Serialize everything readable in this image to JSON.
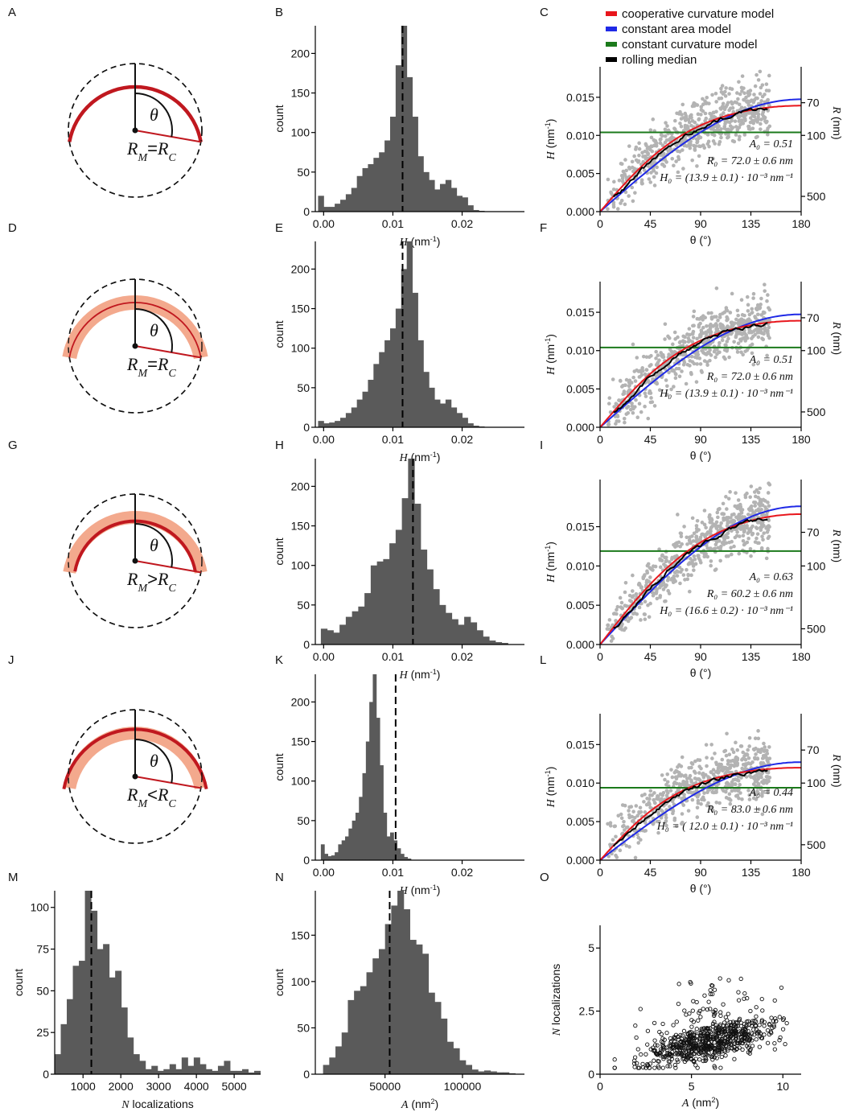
{
  "chart_data": [
    {
      "panel": "A",
      "type": "diagram",
      "variant": "equal",
      "theta_label": "θ",
      "relation": {
        "left": "R",
        "left_sub": "M",
        "op": "=",
        "right": "R",
        "right_sub": "C"
      },
      "colors": {
        "model_arc": "#c0181f",
        "coat": "#f3a98d",
        "ref": "#111111"
      }
    },
    {
      "panel": "B",
      "type": "bar",
      "xlabel": {
        "italic": "H",
        "unit": " (nm",
        "sup": "-1",
        "close": ")"
      },
      "ylabel": "count",
      "xlim": [
        -0.0012,
        0.029
      ],
      "ylim": [
        0,
        235
      ],
      "xticks": [
        0,
        0.01,
        0.02
      ],
      "xticklabels": [
        "0.00",
        "0.01",
        "0.02"
      ],
      "yticks": [
        0,
        50,
        100,
        150,
        200
      ],
      "yticklabels": [
        "0",
        "50",
        "100",
        "150",
        "200"
      ],
      "bin_start": -0.0008,
      "bin_width": 0.0008,
      "values": [
        20,
        6,
        6,
        10,
        15,
        22,
        30,
        45,
        55,
        60,
        68,
        75,
        90,
        120,
        185,
        235,
        170,
        120,
        70,
        50,
        40,
        28,
        35,
        40,
        30,
        20,
        18,
        8,
        2,
        1
      ],
      "median": 0.0114
    },
    {
      "panel": "C",
      "type": "scatter",
      "xlabel": {
        "text": "θ (°)"
      },
      "ylabel": {
        "italic": "H",
        "unit": " (nm",
        "sup": "-1",
        "close": ")"
      },
      "y2label": {
        "italic": "R",
        "unit": " (nm)"
      },
      "xlim": [
        0,
        180
      ],
      "ylim": [
        0,
        0.019
      ],
      "xticks": [
        0,
        45,
        90,
        135,
        180
      ],
      "xticklabels": [
        "0",
        "45",
        "90",
        "135",
        "180"
      ],
      "yticks": [
        0,
        0.005,
        0.01,
        0.015
      ],
      "yticklabels": [
        "0.000",
        "0.005",
        "0.010",
        "0.015"
      ],
      "y2ticks": [
        70,
        100,
        500
      ],
      "y2ticklabels": [
        "70",
        "100",
        "500"
      ],
      "H0": 0.0139,
      "A0": 0.51,
      "constant_H": 0.0104,
      "scatter_points": 620,
      "seed": 7,
      "legend": [
        "cooperative curvature model",
        "constant area model",
        "constant curvature model",
        "rolling median"
      ],
      "legend_colors": [
        "#e8161c",
        "#1f29e6",
        "#1b7a1b",
        "#000000"
      ],
      "annotation": [
        "A₀ = 0.51",
        "R₀ = 72.0 ± 0.6 nm",
        "H₀ = (13.9 ± 0.1) · 10⁻³ nm⁻¹"
      ]
    },
    {
      "panel": "D",
      "type": "diagram",
      "variant": "thick",
      "theta_label": "θ",
      "relation": {
        "left": "R",
        "left_sub": "M",
        "op": "=",
        "right": "R",
        "right_sub": "C"
      }
    },
    {
      "panel": "E",
      "type": "bar",
      "xlabel": {
        "italic": "H",
        "unit": " (nm",
        "sup": "-1",
        "close": ")"
      },
      "ylabel": "count",
      "xlim": [
        -0.0012,
        0.029
      ],
      "ylim": [
        0,
        235
      ],
      "xticks": [
        0,
        0.01,
        0.02
      ],
      "xticklabels": [
        "0.00",
        "0.01",
        "0.02"
      ],
      "yticks": [
        0,
        50,
        100,
        150,
        200
      ],
      "yticklabels": [
        "0",
        "50",
        "100",
        "150",
        "200"
      ],
      "bin_start": -0.0008,
      "bin_width": 0.0008,
      "values": [
        8,
        5,
        6,
        8,
        12,
        18,
        25,
        35,
        45,
        60,
        80,
        95,
        110,
        125,
        150,
        200,
        235,
        170,
        110,
        70,
        50,
        35,
        30,
        35,
        25,
        18,
        12,
        5,
        2,
        1
      ],
      "median": 0.0114
    },
    {
      "panel": "F",
      "type": "scatter",
      "xlabel": {
        "text": "θ (°)"
      },
      "ylabel": {
        "italic": "H",
        "unit": " (nm",
        "sup": "-1",
        "close": ")"
      },
      "y2label": {
        "italic": "R",
        "unit": " (nm)"
      },
      "xlim": [
        0,
        180
      ],
      "ylim": [
        0,
        0.019
      ],
      "xticks": [
        0,
        45,
        90,
        135,
        180
      ],
      "xticklabels": [
        "0",
        "45",
        "90",
        "135",
        "180"
      ],
      "yticks": [
        0,
        0.005,
        0.01,
        0.015
      ],
      "yticklabels": [
        "0.000",
        "0.005",
        "0.010",
        "0.015"
      ],
      "y2ticks": [
        70,
        100,
        500
      ],
      "y2ticklabels": [
        "70",
        "100",
        "500"
      ],
      "H0": 0.0139,
      "A0": 0.51,
      "constant_H": 0.0104,
      "scatter_points": 620,
      "seed": 13,
      "annotation": [
        "A₀ = 0.51",
        "R₀ = 72.0 ± 0.6 nm",
        "H₀ = (13.9 ± 0.1) · 10⁻³ nm⁻¹"
      ]
    },
    {
      "panel": "G",
      "type": "diagram",
      "variant": "greater",
      "theta_label": "θ",
      "relation": {
        "left": "R",
        "left_sub": "M",
        "op": ">",
        "right": "R",
        "right_sub": "C"
      }
    },
    {
      "panel": "H",
      "type": "bar",
      "xlabel": {
        "italic": "H",
        "unit": " (nm",
        "sup": "-1",
        "close": ")"
      },
      "ylabel": "count",
      "xlim": [
        -0.0012,
        0.029
      ],
      "ylim": [
        0,
        235
      ],
      "xticks": [
        0,
        0.01,
        0.02
      ],
      "xticklabels": [
        "0.00",
        "0.01",
        "0.02"
      ],
      "yticks": [
        0,
        50,
        100,
        150,
        200
      ],
      "yticklabels": [
        "0",
        "50",
        "100",
        "150",
        "200"
      ],
      "bin_start": -0.0004,
      "bin_width": 0.0009,
      "values": [
        20,
        18,
        15,
        25,
        35,
        42,
        48,
        65,
        100,
        105,
        108,
        128,
        145,
        185,
        235,
        178,
        120,
        95,
        70,
        50,
        40,
        32,
        25,
        35,
        28,
        18,
        10,
        5,
        3,
        2
      ],
      "median": 0.0129
    },
    {
      "panel": "I",
      "type": "scatter",
      "xlabel": {
        "text": "θ (°)"
      },
      "ylabel": {
        "italic": "H",
        "unit": " (nm",
        "sup": "-1",
        "close": ")"
      },
      "y2label": {
        "italic": "R",
        "unit": " (nm)"
      },
      "xlim": [
        0,
        180
      ],
      "ylim": [
        0,
        0.021
      ],
      "xticks": [
        0,
        45,
        90,
        135,
        180
      ],
      "xticklabels": [
        "0",
        "45",
        "90",
        "135",
        "180"
      ],
      "yticks": [
        0,
        0.005,
        0.01,
        0.015
      ],
      "yticklabels": [
        "0.000",
        "0.005",
        "0.010",
        "0.015"
      ],
      "y2ticks": [
        70,
        100,
        500
      ],
      "y2ticklabels": [
        "70",
        "100",
        "500"
      ],
      "H0": 0.0166,
      "A0": 0.63,
      "constant_H": 0.0119,
      "scatter_points": 620,
      "seed": 23,
      "annotation": [
        "A₀ = 0.63",
        "R₀ = 60.2 ± 0.6 nm",
        "H₀ = (16.6 ± 0.2) · 10⁻³ nm⁻¹"
      ]
    },
    {
      "panel": "J",
      "type": "diagram",
      "variant": "less",
      "theta_label": "θ",
      "relation": {
        "left": "R",
        "left_sub": "M",
        "op": "<",
        "right": "R",
        "right_sub": "C"
      }
    },
    {
      "panel": "K",
      "type": "bar",
      "xlabel": {
        "italic": "H",
        "unit": " (nm",
        "sup": "-1",
        "close": ")"
      },
      "ylabel": "count",
      "xlim": [
        -0.0012,
        0.029
      ],
      "ylim": [
        0,
        235
      ],
      "xticks": [
        0,
        0.01,
        0.02
      ],
      "xticklabels": [
        "0.00",
        "0.01",
        "0.02"
      ],
      "yticks": [
        0,
        50,
        100,
        150,
        200
      ],
      "yticklabels": [
        "0",
        "50",
        "100",
        "150",
        "200"
      ],
      "bin_start": -0.0004,
      "bin_width": 0.0005,
      "values": [
        20,
        8,
        5,
        6,
        10,
        20,
        25,
        30,
        40,
        50,
        60,
        80,
        110,
        150,
        200,
        235,
        180,
        120,
        60,
        30,
        35,
        25,
        15,
        8,
        4,
        2
      ],
      "median": 0.0104
    },
    {
      "panel": "L",
      "type": "scatter",
      "xlabel": {
        "text": "θ (°)"
      },
      "ylabel": {
        "italic": "H",
        "unit": " (nm",
        "sup": "-1",
        "close": ")"
      },
      "y2label": {
        "italic": "R",
        "unit": " (nm)"
      },
      "xlim": [
        0,
        180
      ],
      "ylim": [
        0,
        0.019
      ],
      "xticks": [
        0,
        45,
        90,
        135,
        180
      ],
      "xticklabels": [
        "0",
        "45",
        "90",
        "135",
        "180"
      ],
      "yticks": [
        0,
        0.005,
        0.01,
        0.015
      ],
      "yticklabels": [
        "0.000",
        "0.005",
        "0.010",
        "0.015"
      ],
      "y2ticks": [
        70,
        100,
        500
      ],
      "y2ticklabels": [
        "70",
        "100",
        "500"
      ],
      "H0": 0.012,
      "A0": 0.44,
      "constant_H": 0.0094,
      "scatter_points": 620,
      "seed": 41,
      "annotation": [
        "A₀ = 0.44",
        "R₀ =  83.0 ± 0.6 nm",
        "H₀ = ( 12.0 ± 0.1) · 10⁻³ nm⁻¹"
      ]
    },
    {
      "panel": "M",
      "type": "bar",
      "xlabel": {
        "italic": "N",
        "unit": " localizations"
      },
      "ylabel": "count",
      "xlim": [
        250,
        5700
      ],
      "ylim": [
        0,
        110
      ],
      "xticks": [
        1000,
        2000,
        3000,
        4000,
        5000
      ],
      "xticklabels": [
        "1000",
        "2000",
        "3000",
        "4000",
        "5000"
      ],
      "yticks": [
        0,
        25,
        50,
        75,
        100
      ],
      "yticklabels": [
        "0",
        "25",
        "50",
        "75",
        "100"
      ],
      "bin_start": 250,
      "bin_width": 160,
      "values": [
        12,
        30,
        45,
        65,
        68,
        110,
        98,
        75,
        78,
        58,
        62,
        40,
        22,
        12,
        8,
        3,
        5,
        2,
        3,
        6,
        3,
        10,
        5,
        10,
        6,
        3,
        2,
        5,
        8,
        2,
        2,
        3,
        1,
        2
      ],
      "median": 1220
    },
    {
      "panel": "N",
      "type": "bar",
      "xlabel": {
        "italic": "A",
        "unit": " (nm",
        "sup": "2",
        "close": ")"
      },
      "ylabel": "count",
      "xlim": [
        5000,
        140000
      ],
      "ylim": [
        0,
        198
      ],
      "xticks": [
        50000,
        100000
      ],
      "xticklabels": [
        "50000",
        "100000"
      ],
      "yticks": [
        0,
        50,
        100,
        150
      ],
      "yticklabels": [
        "0",
        "50",
        "100",
        "150"
      ],
      "bin_start": 10000,
      "bin_width": 4000,
      "values": [
        10,
        18,
        30,
        45,
        80,
        90,
        95,
        110,
        125,
        135,
        162,
        182,
        198,
        178,
        145,
        140,
        130,
        88,
        78,
        60,
        35,
        28,
        15,
        10,
        5,
        3,
        4,
        3,
        2,
        2,
        1
      ],
      "median": 53000
    },
    {
      "panel": "O",
      "type": "scatter",
      "xlabel": {
        "italic": "A",
        "unit": " (nm",
        "sup": "2",
        "close": ")"
      },
      "ylabel": {
        "italic": "N",
        "unit": " localizations"
      },
      "xlim": [
        0,
        11
      ],
      "ylim": [
        0,
        5.9
      ],
      "xticks": [
        0,
        5,
        10
      ],
      "xticklabels": [
        "0",
        "5",
        "10"
      ],
      "yticks": [
        0,
        2.5,
        5
      ],
      "yticklabels": [
        "0",
        "2.5",
        "5"
      ],
      "scatter_points": 700,
      "seed": 5
    }
  ],
  "panel_letters": [
    "A",
    "B",
    "C",
    "D",
    "E",
    "F",
    "G",
    "H",
    "I",
    "J",
    "K",
    "L",
    "M",
    "N",
    "O"
  ]
}
